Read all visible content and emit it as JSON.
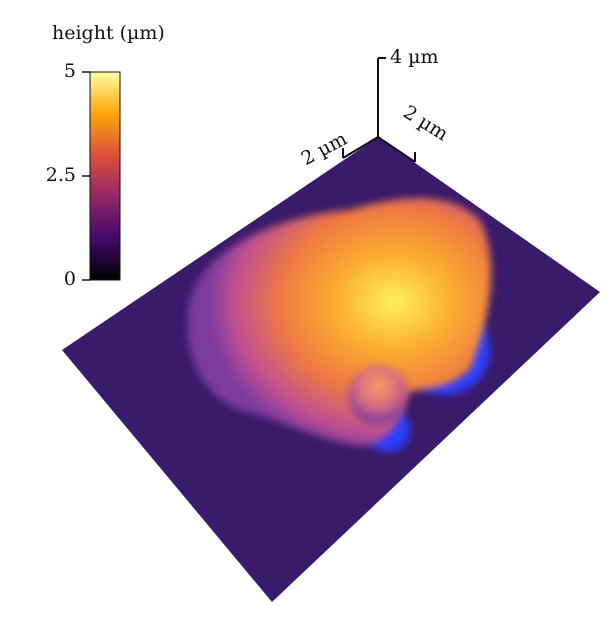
{
  "colorbar": {
    "title": "height (µm)",
    "lim": [
      0,
      5
    ],
    "ticks": [
      0,
      2.5,
      5
    ]
  },
  "axes": {
    "z_label": "4 µm",
    "x_label": "2 µm",
    "y_label": "2 µm"
  }
}
